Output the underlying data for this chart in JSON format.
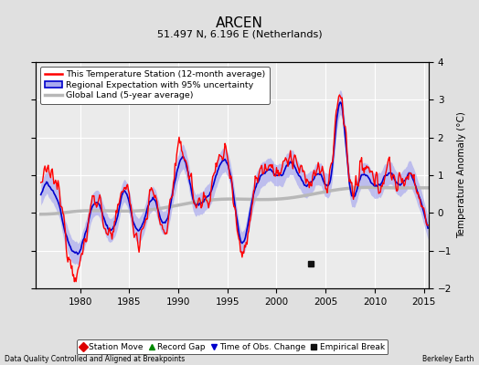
{
  "title": "ARCEN",
  "subtitle": "51.497 N, 6.196 E (Netherlands)",
  "ylabel": "Temperature Anomaly (°C)",
  "xlim": [
    1975.5,
    2015.5
  ],
  "ylim": [
    -2.0,
    4.0
  ],
  "yticks": [
    -2,
    -1,
    0,
    1,
    2,
    3,
    4
  ],
  "xticks": [
    1980,
    1985,
    1990,
    1995,
    2000,
    2005,
    2010,
    2015
  ],
  "background_color": "#e0e0e0",
  "plot_background": "#ebebeb",
  "grid_color": "#ffffff",
  "station_color": "#ff0000",
  "regional_fill_color": "#aaaaee",
  "regional_line_color": "#0000cc",
  "global_color": "#b8b8b8",
  "footer_left": "Data Quality Controlled and Aligned at Breakpoints",
  "footer_right": "Berkeley Earth",
  "legend_entries": [
    "This Temperature Station (12-month average)",
    "Regional Expectation with 95% uncertainty",
    "Global Land (5-year average)"
  ],
  "marker_legend": [
    {
      "label": "Station Move",
      "color": "#dd0000",
      "marker": "D"
    },
    {
      "label": "Record Gap",
      "color": "#008800",
      "marker": "^"
    },
    {
      "label": "Time of Obs. Change",
      "color": "#0000cc",
      "marker": "v"
    },
    {
      "label": "Empirical Break",
      "color": "#111111",
      "marker": "s"
    }
  ],
  "empirical_break_x": 2003.5,
  "empirical_break_y": -1.35,
  "seed": 12345
}
